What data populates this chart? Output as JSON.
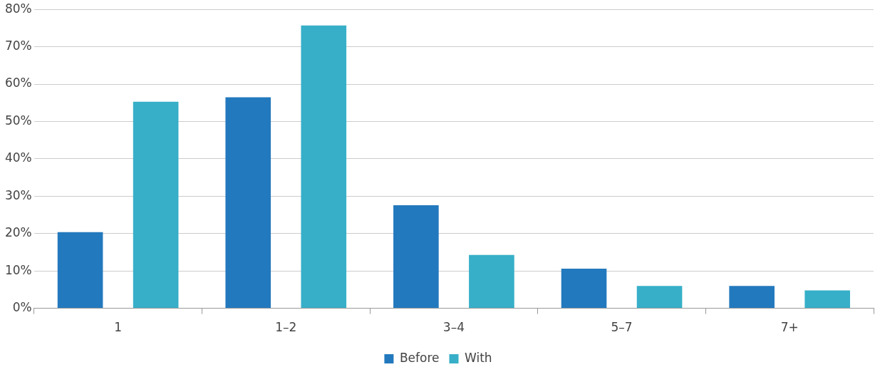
{
  "chart_data": {
    "type": "bar",
    "categories": [
      "1",
      "1–2",
      "3–4",
      "5–7",
      "7+"
    ],
    "series": [
      {
        "name": "Before",
        "color": "#2379bd",
        "values": [
          20.4,
          56.5,
          27.6,
          10.6,
          6.0
        ]
      },
      {
        "name": "With",
        "color": "#37afc8",
        "values": [
          55.3,
          75.7,
          14.3,
          6.0,
          4.8
        ]
      }
    ],
    "ylim": [
      0,
      80
    ],
    "yticks": [
      {
        "value": 0,
        "label": "0%"
      },
      {
        "value": 10,
        "label": "10%"
      },
      {
        "value": 20,
        "label": "20%"
      },
      {
        "value": 30,
        "label": "30%"
      },
      {
        "value": 40,
        "label": "40%"
      },
      {
        "value": 50,
        "label": "50%"
      },
      {
        "value": 60,
        "label": "60%"
      },
      {
        "value": 70,
        "label": "70%"
      },
      {
        "value": 80,
        "label": "80%"
      }
    ],
    "grid": "y",
    "legend": "bottom"
  }
}
